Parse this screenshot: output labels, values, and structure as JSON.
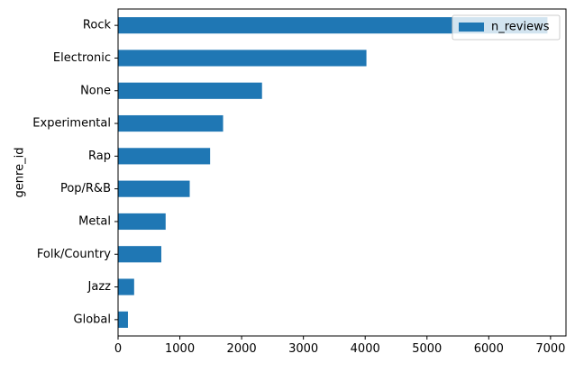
{
  "chart_data": {
    "type": "bar",
    "orientation": "horizontal",
    "ylabel": "genre_id",
    "xlabel": "",
    "categories": [
      "Global",
      "Jazz",
      "Folk/Country",
      "Metal",
      "Pop/R&B",
      "Rap",
      "Experimental",
      "None",
      "Electronic",
      "Rock"
    ],
    "series": [
      {
        "name": "n_reviews",
        "values": [
          160,
          260,
          700,
          770,
          1160,
          1490,
          1700,
          2330,
          4020,
          6950
        ],
        "color": "#1f77b4"
      }
    ],
    "xlim": [
      0,
      7250
    ],
    "xticks": [
      0,
      1000,
      2000,
      3000,
      4000,
      5000,
      6000,
      7000
    ],
    "xtick_labels": [
      "0",
      "1000",
      "2000",
      "3000",
      "4000",
      "5000",
      "6000",
      "7000"
    ],
    "legend_position": "top-right",
    "grid": false
  }
}
